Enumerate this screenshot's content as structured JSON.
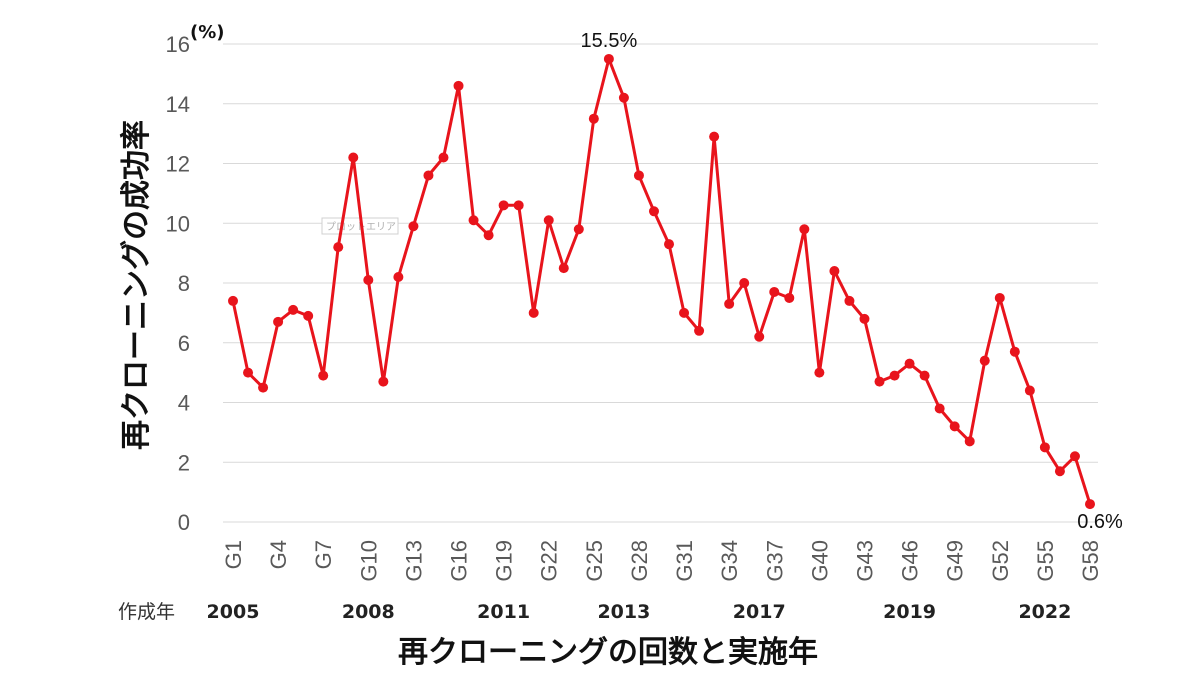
{
  "chart_data": {
    "type": "line",
    "ylabel": "再クローニングの成功率",
    "y_unit": "(%)",
    "xlabel": "再クローニングの回数と実施年",
    "ylim": [
      0,
      16
    ],
    "y_ticks": [
      0,
      2,
      4,
      6,
      8,
      10,
      12,
      14,
      16
    ],
    "grid": true,
    "line_color": "#e8141c",
    "x_tick_labels": [
      "G1",
      "G4",
      "G7",
      "G10",
      "G13",
      "G16",
      "G19",
      "G22",
      "G25",
      "G28",
      "G31",
      "G34",
      "G37",
      "G40",
      "G43",
      "G46",
      "G49",
      "G52",
      "G55",
      "G58"
    ],
    "year_caption": "作成年",
    "year_labels": [
      {
        "label": "2005",
        "at": "G1"
      },
      {
        "label": "2008",
        "at": "G10"
      },
      {
        "label": "2011",
        "at": "G19"
      },
      {
        "label": "2013",
        "at": "G27"
      },
      {
        "label": "2017",
        "at": "G36"
      },
      {
        "label": "2019",
        "at": "G46"
      },
      {
        "label": "2022",
        "at": "G55"
      }
    ],
    "x": [
      "G1",
      "G2",
      "G3",
      "G4",
      "G5",
      "G6",
      "G7",
      "G8",
      "G9",
      "G10",
      "G11",
      "G12",
      "G13",
      "G14",
      "G15",
      "G16",
      "G17",
      "G18",
      "G19",
      "G20",
      "G21",
      "G22",
      "G23",
      "G24",
      "G25",
      "G26",
      "G27",
      "G28",
      "G29",
      "G30",
      "G31",
      "G32",
      "G33",
      "G34",
      "G35",
      "G36",
      "G37",
      "G38",
      "G39",
      "G40",
      "G41",
      "G42",
      "G43",
      "G44",
      "G45",
      "G46",
      "G47",
      "G48",
      "G49",
      "G50",
      "G51",
      "G52",
      "G53",
      "G54",
      "G55",
      "G56",
      "G57",
      "G58"
    ],
    "values": [
      7.4,
      5.0,
      4.5,
      6.7,
      7.1,
      6.9,
      4.9,
      9.2,
      12.2,
      8.1,
      4.7,
      8.2,
      9.9,
      11.6,
      12.2,
      14.6,
      10.1,
      9.6,
      10.6,
      10.6,
      7.0,
      10.1,
      8.5,
      9.8,
      13.5,
      15.5,
      14.2,
      11.6,
      10.4,
      9.3,
      7.0,
      6.4,
      12.9,
      7.3,
      8.0,
      6.2,
      7.7,
      7.5,
      9.8,
      5.0,
      8.4,
      7.4,
      6.8,
      4.7,
      4.9,
      5.3,
      4.9,
      3.8,
      3.2,
      2.7,
      5.4,
      7.5,
      5.7,
      4.4,
      2.5,
      1.7,
      2.2,
      0.6
    ],
    "annotations": [
      {
        "text": "15.5%",
        "at": "G26"
      },
      {
        "text": "0.6%",
        "at": "G58"
      }
    ]
  },
  "watermark": "プロットエリア"
}
